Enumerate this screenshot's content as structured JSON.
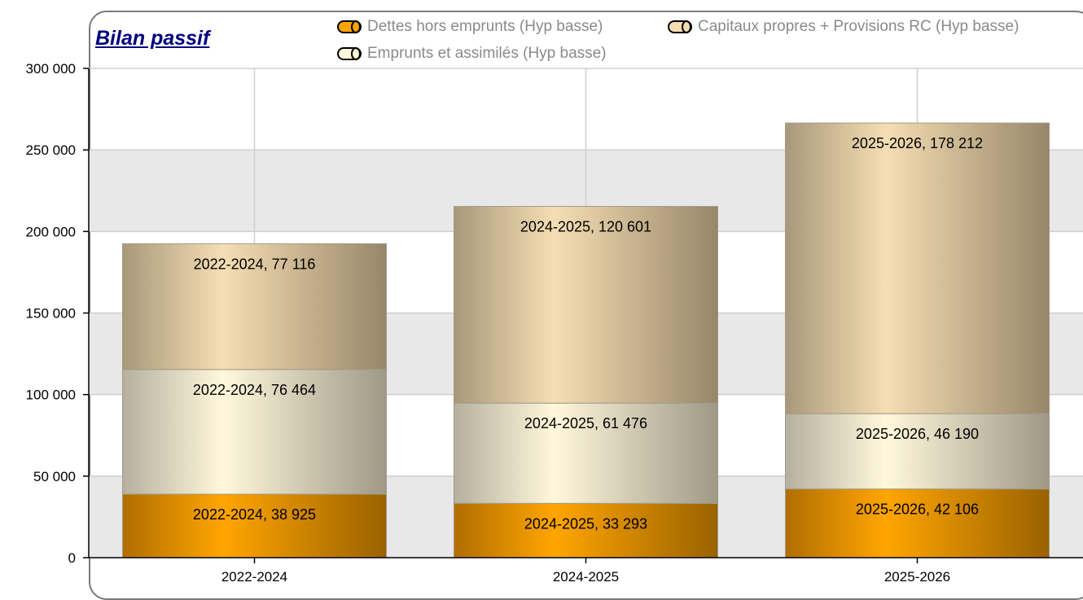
{
  "chart_data": {
    "type": "bar",
    "stacked": true,
    "title": "Bilan passif",
    "categories": [
      "2022-2024",
      "2024-2025",
      "2025-2026"
    ],
    "series": [
      {
        "name": "Dettes hors emprunts (Hyp basse)",
        "values": [
          38925,
          33293,
          42106
        ],
        "color": "#ffa500"
      },
      {
        "name": "Emprunts et assimilés (Hyp basse)",
        "values": [
          76464,
          61476,
          46190
        ],
        "color": "#fff8dc"
      },
      {
        "name": "Capitaux propres + Provisions RC (Hyp basse)",
        "values": [
          77116,
          120601,
          178212
        ],
        "color": "#f5deb3"
      }
    ],
    "data_labels": [
      [
        "2022-2024, 38 925",
        "2024-2025, 33 293",
        "2025-2026, 42 106"
      ],
      [
        "2022-2024, 76 464",
        "2024-2025, 61 476",
        "2025-2026, 46 190"
      ],
      [
        "2022-2024, 77 116",
        "2024-2025, 120 601",
        "2025-2026, 178 212"
      ]
    ],
    "xlabel": "",
    "ylabel": "",
    "ylim": [
      0,
      300000
    ],
    "yticks": [
      0,
      50000,
      100000,
      150000,
      200000,
      250000,
      300000
    ],
    "ytick_labels": [
      "0",
      "50 000",
      "100 000",
      "150 000",
      "200 000",
      "250 000",
      "300 000"
    ],
    "grid": true,
    "legend_position": "top"
  }
}
